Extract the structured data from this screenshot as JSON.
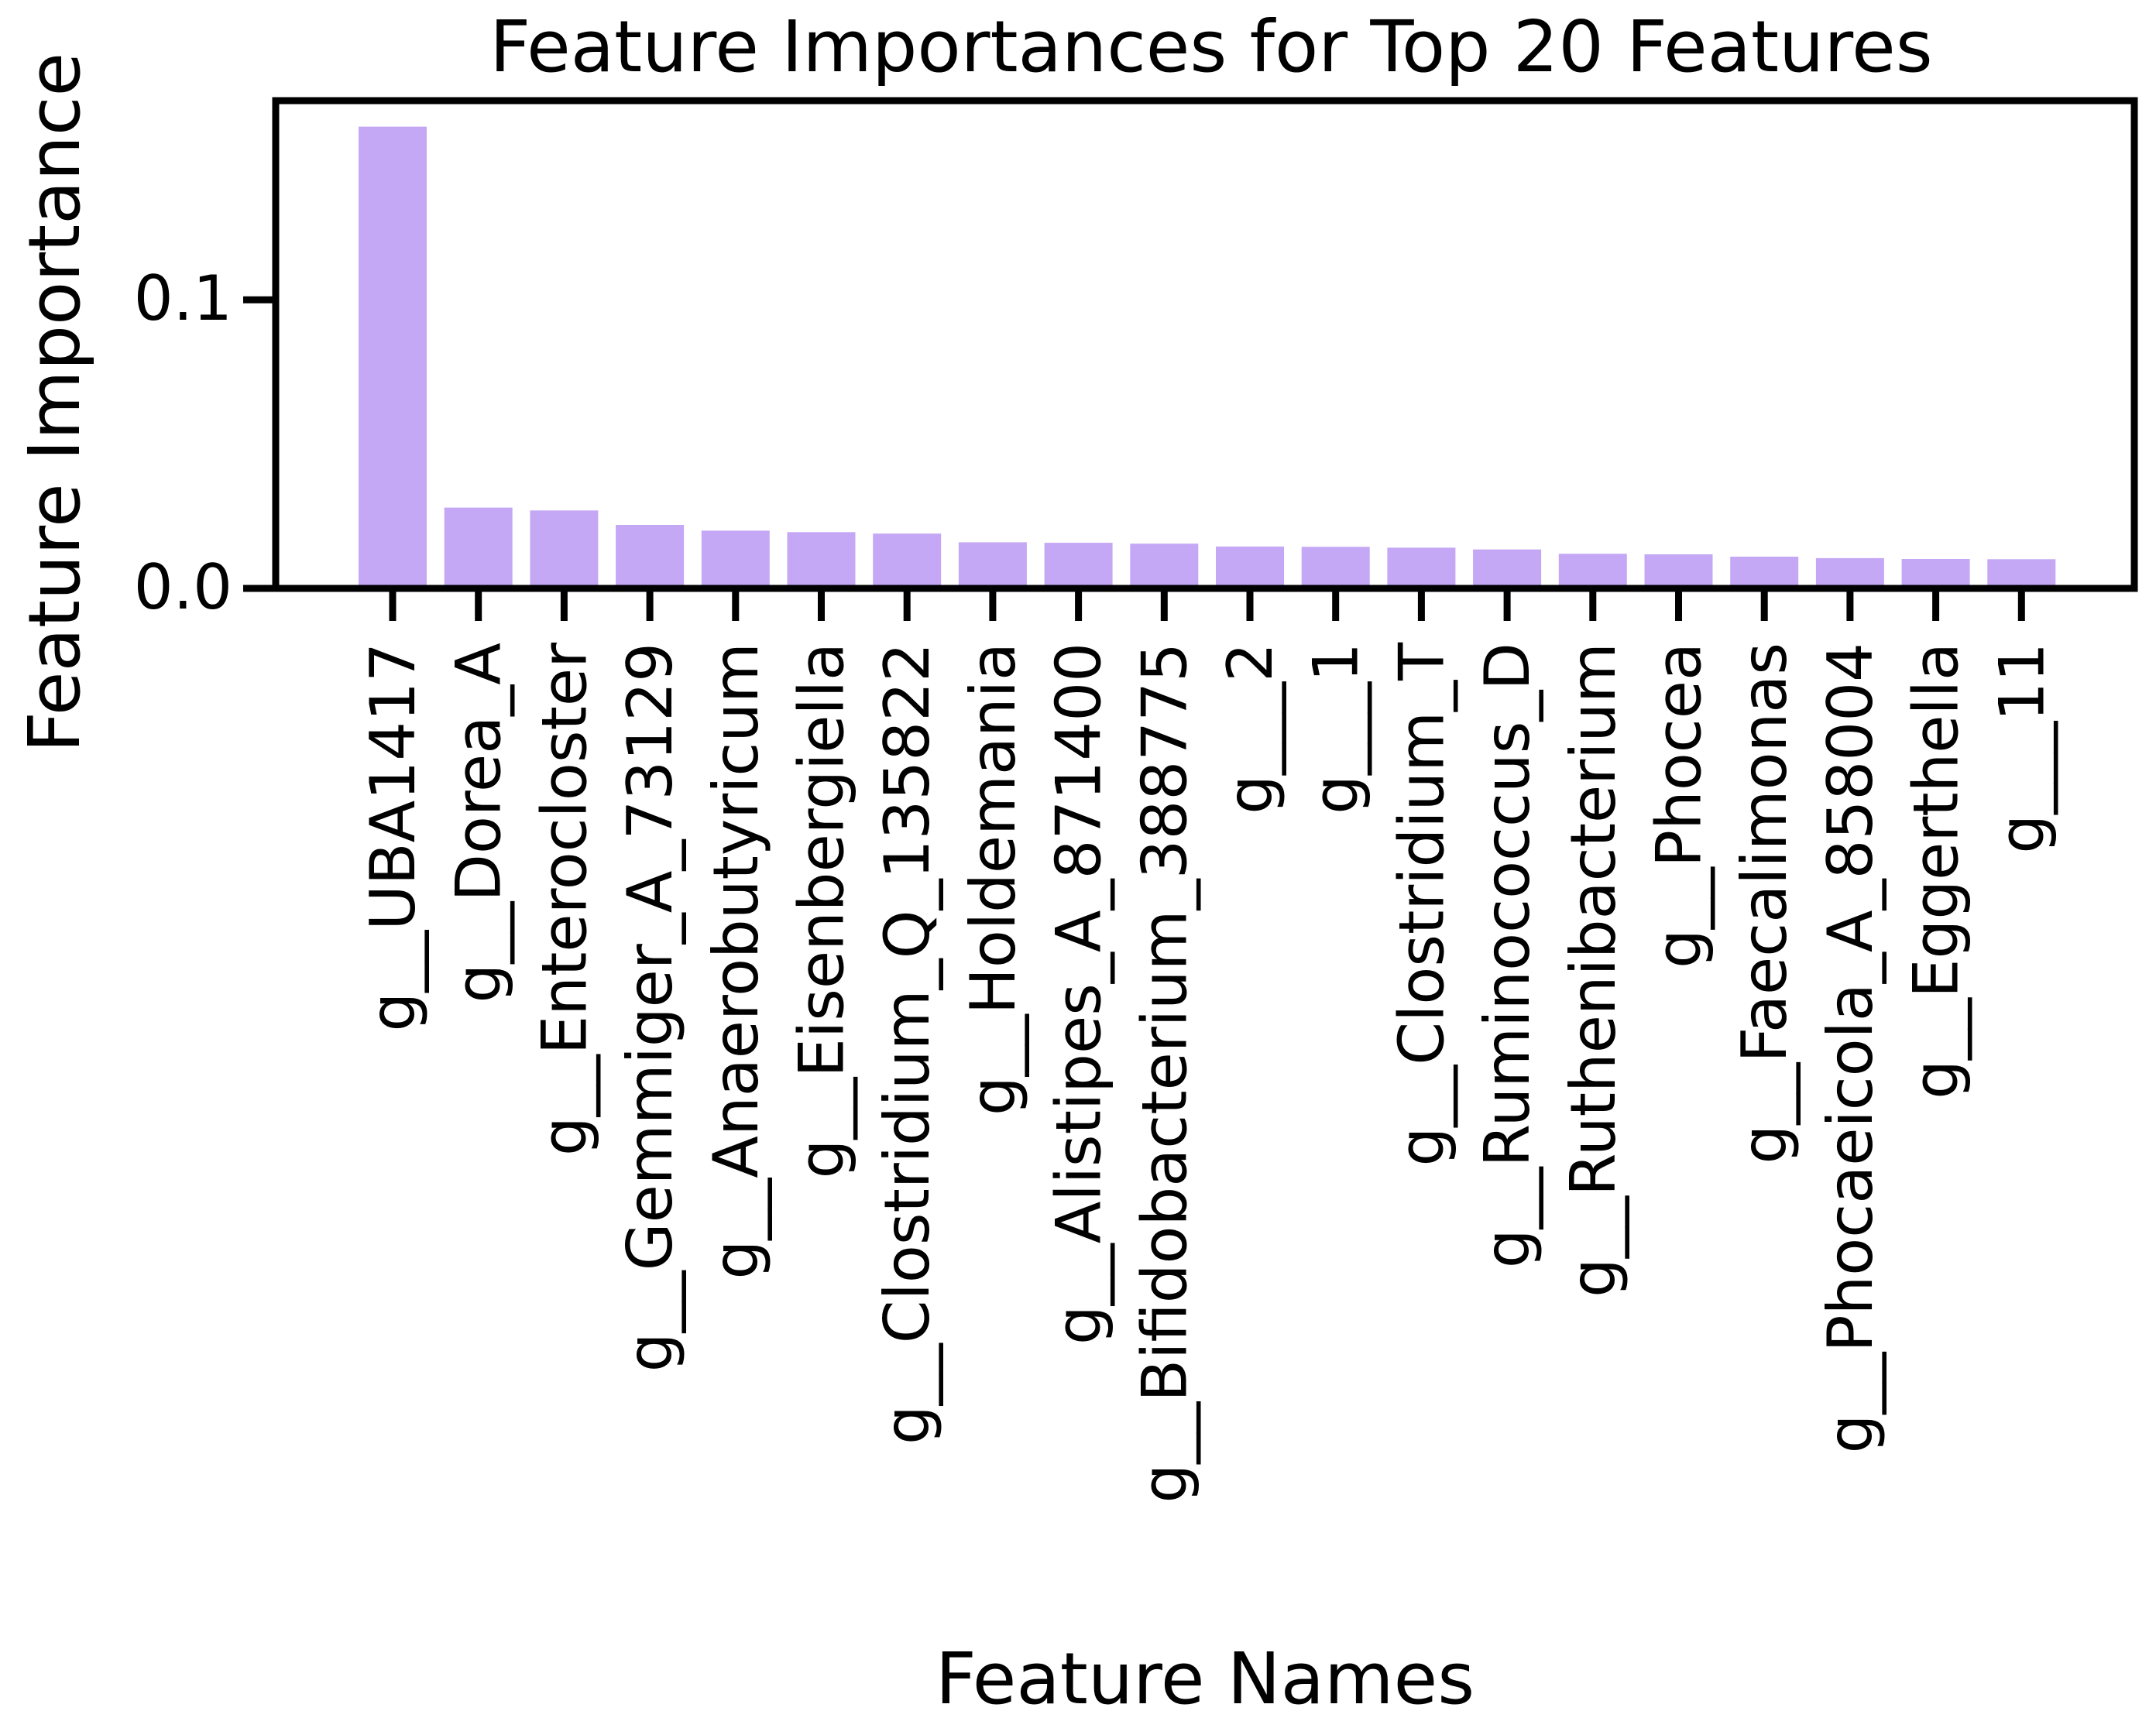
{
  "chart_data": {
    "type": "bar",
    "title": "Feature Importances for Top 20 Features",
    "xlabel": "Feature Names",
    "ylabel": "Feature Importance",
    "categories": [
      "g__UBA1417",
      "g__Dorea_A",
      "g__Enterocloster",
      "g__Gemmiger_A_73129",
      "g__Anaerobutyricum",
      "g__Eisenbergiella",
      "g__Clostridium_Q_135822",
      "g__Holdemania",
      "g__Alistipes_A_871400",
      "g__Bifidobacterium_388775",
      "g___2",
      "g___1",
      "g__Clostridium_T",
      "g__Ruminococcus_D",
      "g__Ruthenibacterium",
      "g__Phocea",
      "g__Faecalimonas",
      "g__Phocaeicola_A_858004",
      "g__Eggerthella",
      "g___11"
    ],
    "values": [
      0.16,
      0.028,
      0.027,
      0.022,
      0.02,
      0.0195,
      0.019,
      0.016,
      0.0158,
      0.0155,
      0.0145,
      0.0144,
      0.0141,
      0.0135,
      0.012,
      0.0118,
      0.011,
      0.0105,
      0.0102,
      0.0101
    ],
    "ylim": [
      0.0,
      0.169
    ],
    "yticks": [
      {
        "value": 0.0,
        "label": "0.0"
      },
      {
        "value": 0.1,
        "label": "0.1"
      }
    ],
    "bar_color": "#c5a8f5",
    "grid": false,
    "legend": "none"
  }
}
